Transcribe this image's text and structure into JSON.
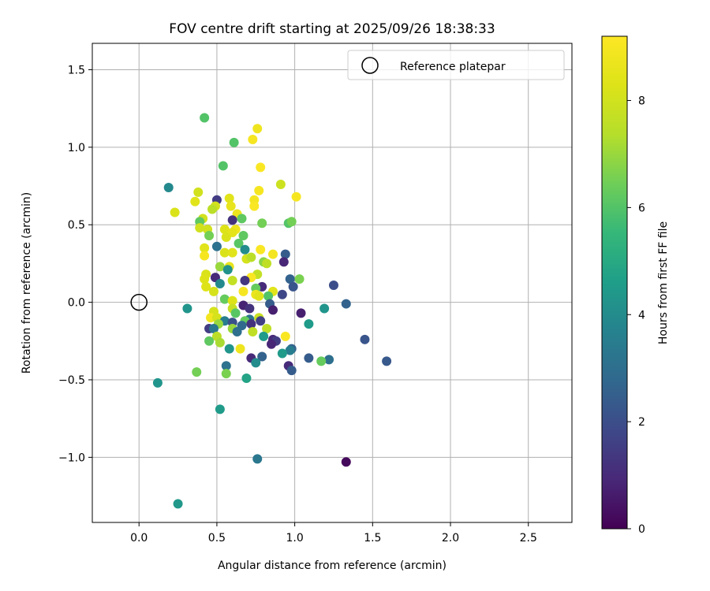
{
  "chart_data": {
    "type": "scatter",
    "title": "FOV centre drift starting at 2025/09/26 18:38:33",
    "xlabel": "Angular distance from reference (arcmin)",
    "ylabel": "Rotation from reference (arcmin)",
    "xlim": [
      -0.3,
      2.78
    ],
    "ylim": [
      -1.42,
      1.67
    ],
    "xticks": [
      0.0,
      0.5,
      1.0,
      1.5,
      2.0,
      2.5
    ],
    "xtick_labels": [
      "0.0",
      "0.5",
      "1.0",
      "1.5",
      "2.0",
      "2.5"
    ],
    "yticks": [
      -1.0,
      -0.5,
      0.0,
      0.5,
      1.0,
      1.5
    ],
    "ytick_labels": [
      "−1.0",
      "−0.5",
      "0.0",
      "0.5",
      "1.0",
      "1.5"
    ],
    "grid": true,
    "legend": {
      "position": "top-right",
      "label": "Reference platepar"
    },
    "reference_point": {
      "x": 0.0,
      "y": 0.0
    },
    "colorbar": {
      "label": "Hours from first FF file",
      "min": 0,
      "max": 9.2,
      "ticks": [
        0,
        2,
        4,
        6,
        8
      ],
      "tick_labels": [
        "0",
        "2",
        "4",
        "6",
        "8"
      ],
      "colormap": "viridis"
    },
    "points": [
      {
        "x": 0.42,
        "y": 1.19,
        "c": 6.0
      },
      {
        "x": 0.76,
        "y": 1.12,
        "c": 8.8
      },
      {
        "x": 0.73,
        "y": 1.05,
        "c": 9.0
      },
      {
        "x": 0.61,
        "y": 1.03,
        "c": 6.0
      },
      {
        "x": 0.54,
        "y": 0.88,
        "c": 6.0
      },
      {
        "x": 0.78,
        "y": 0.87,
        "c": 9.1
      },
      {
        "x": 0.91,
        "y": 0.76,
        "c": 7.9
      },
      {
        "x": 0.19,
        "y": 0.74,
        "c": 3.9
      },
      {
        "x": 0.77,
        "y": 0.72,
        "c": 9.0
      },
      {
        "x": 0.38,
        "y": 0.71,
        "c": 8.0
      },
      {
        "x": 1.01,
        "y": 0.68,
        "c": 9.0
      },
      {
        "x": 0.58,
        "y": 0.67,
        "c": 8.4
      },
      {
        "x": 0.74,
        "y": 0.66,
        "c": 8.9
      },
      {
        "x": 0.5,
        "y": 0.66,
        "c": 1.5
      },
      {
        "x": 0.36,
        "y": 0.65,
        "c": 8.4
      },
      {
        "x": 0.59,
        "y": 0.62,
        "c": 8.6
      },
      {
        "x": 0.74,
        "y": 0.62,
        "c": 9.1
      },
      {
        "x": 0.49,
        "y": 0.62,
        "c": 8.0
      },
      {
        "x": 0.23,
        "y": 0.58,
        "c": 8.2
      },
      {
        "x": 0.47,
        "y": 0.6,
        "c": 7.5
      },
      {
        "x": 0.63,
        "y": 0.57,
        "c": 8.7
      },
      {
        "x": 0.41,
        "y": 0.54,
        "c": 8.0
      },
      {
        "x": 0.6,
        "y": 0.53,
        "c": 1.2
      },
      {
        "x": 0.66,
        "y": 0.54,
        "c": 6.2
      },
      {
        "x": 0.39,
        "y": 0.52,
        "c": 6.2
      },
      {
        "x": 0.79,
        "y": 0.51,
        "c": 6.5
      },
      {
        "x": 0.96,
        "y": 0.51,
        "c": 6.0
      },
      {
        "x": 0.98,
        "y": 0.52,
        "c": 6.5
      },
      {
        "x": 0.39,
        "y": 0.48,
        "c": 8.0
      },
      {
        "x": 0.55,
        "y": 0.47,
        "c": 8.3
      },
      {
        "x": 0.62,
        "y": 0.47,
        "c": 8.8
      },
      {
        "x": 0.44,
        "y": 0.47,
        "c": 8.0
      },
      {
        "x": 0.6,
        "y": 0.45,
        "c": 8.5
      },
      {
        "x": 0.45,
        "y": 0.43,
        "c": 6.5
      },
      {
        "x": 0.56,
        "y": 0.42,
        "c": 8.2
      },
      {
        "x": 0.67,
        "y": 0.43,
        "c": 6.2
      },
      {
        "x": 0.64,
        "y": 0.38,
        "c": 6.1
      },
      {
        "x": 0.5,
        "y": 0.36,
        "c": 3.1
      },
      {
        "x": 0.42,
        "y": 0.35,
        "c": 8.4
      },
      {
        "x": 0.68,
        "y": 0.34,
        "c": 4.0
      },
      {
        "x": 0.78,
        "y": 0.34,
        "c": 9.1
      },
      {
        "x": 0.55,
        "y": 0.32,
        "c": 8.2
      },
      {
        "x": 0.6,
        "y": 0.32,
        "c": 8.4
      },
      {
        "x": 0.86,
        "y": 0.31,
        "c": 8.9
      },
      {
        "x": 0.94,
        "y": 0.31,
        "c": 2.4
      },
      {
        "x": 0.42,
        "y": 0.3,
        "c": 9.0
      },
      {
        "x": 0.69,
        "y": 0.28,
        "c": 8.1
      },
      {
        "x": 0.72,
        "y": 0.29,
        "c": 7.5
      },
      {
        "x": 0.8,
        "y": 0.26,
        "c": 6.8
      },
      {
        "x": 0.82,
        "y": 0.25,
        "c": 7.6
      },
      {
        "x": 0.93,
        "y": 0.26,
        "c": 0.9
      },
      {
        "x": 0.52,
        "y": 0.23,
        "c": 7.0
      },
      {
        "x": 0.58,
        "y": 0.23,
        "c": 8.6
      },
      {
        "x": 0.57,
        "y": 0.21,
        "c": 4.2
      },
      {
        "x": 0.43,
        "y": 0.18,
        "c": 8.2
      },
      {
        "x": 0.76,
        "y": 0.18,
        "c": 7.7
      },
      {
        "x": 0.42,
        "y": 0.15,
        "c": 8.3
      },
      {
        "x": 0.49,
        "y": 0.16,
        "c": 1.0
      },
      {
        "x": 0.72,
        "y": 0.16,
        "c": 9.1
      },
      {
        "x": 0.97,
        "y": 0.15,
        "c": 2.6
      },
      {
        "x": 1.03,
        "y": 0.15,
        "c": 6.6
      },
      {
        "x": 0.6,
        "y": 0.14,
        "c": 7.7
      },
      {
        "x": 0.68,
        "y": 0.14,
        "c": 1.3
      },
      {
        "x": 0.52,
        "y": 0.12,
        "c": 3.9
      },
      {
        "x": 0.43,
        "y": 0.1,
        "c": 8.3
      },
      {
        "x": 0.79,
        "y": 0.1,
        "c": 1.0
      },
      {
        "x": 0.99,
        "y": 0.1,
        "c": 2.2
      },
      {
        "x": 0.75,
        "y": 0.09,
        "c": 6.3
      },
      {
        "x": 0.48,
        "y": 0.07,
        "c": 8.1
      },
      {
        "x": 0.67,
        "y": 0.07,
        "c": 9.0
      },
      {
        "x": 0.86,
        "y": 0.07,
        "c": 8.4
      },
      {
        "x": 0.83,
        "y": 0.04,
        "c": 6.0
      },
      {
        "x": 0.92,
        "y": 0.05,
        "c": 1.8
      },
      {
        "x": 0.75,
        "y": 0.05,
        "c": 8.7
      },
      {
        "x": 0.77,
        "y": 0.04,
        "c": 8.4
      },
      {
        "x": 1.25,
        "y": 0.11,
        "c": 2.0
      },
      {
        "x": 0.55,
        "y": 0.02,
        "c": 6.3
      },
      {
        "x": 0.6,
        "y": 0.01,
        "c": 8.3
      },
      {
        "x": 0.84,
        "y": -0.01,
        "c": 2.4
      },
      {
        "x": 0.67,
        "y": -0.02,
        "c": 0.8
      },
      {
        "x": 0.31,
        "y": -0.04,
        "c": 4.3
      },
      {
        "x": 0.6,
        "y": -0.04,
        "c": 7.8
      },
      {
        "x": 0.71,
        "y": -0.04,
        "c": 1.2
      },
      {
        "x": 1.19,
        "y": -0.04,
        "c": 4.3
      },
      {
        "x": 1.33,
        "y": -0.01,
        "c": 2.6
      },
      {
        "x": 0.48,
        "y": -0.06,
        "c": 8.1
      },
      {
        "x": 0.86,
        "y": -0.05,
        "c": 0.7
      },
      {
        "x": 0.62,
        "y": -0.07,
        "c": 6.1
      },
      {
        "x": 1.04,
        "y": -0.07,
        "c": 0.7
      },
      {
        "x": 0.46,
        "y": -0.1,
        "c": 8.9
      },
      {
        "x": 0.5,
        "y": -0.1,
        "c": 8.1
      },
      {
        "x": 0.77,
        "y": -0.1,
        "c": 7.8
      },
      {
        "x": 0.78,
        "y": -0.12,
        "c": 1.6
      },
      {
        "x": 0.71,
        "y": -0.11,
        "c": 3.2
      },
      {
        "x": 0.68,
        "y": -0.12,
        "c": 6.3
      },
      {
        "x": 0.55,
        "y": -0.12,
        "c": 3.5
      },
      {
        "x": 0.6,
        "y": -0.13,
        "c": 2.1
      },
      {
        "x": 0.51,
        "y": -0.14,
        "c": 7.0
      },
      {
        "x": 1.09,
        "y": -0.14,
        "c": 4.5
      },
      {
        "x": 0.72,
        "y": -0.14,
        "c": 1.2
      },
      {
        "x": 0.66,
        "y": -0.15,
        "c": 2.8
      },
      {
        "x": 0.45,
        "y": -0.17,
        "c": 1.5
      },
      {
        "x": 0.48,
        "y": -0.17,
        "c": 3.3
      },
      {
        "x": 0.6,
        "y": -0.17,
        "c": 7.0
      },
      {
        "x": 0.82,
        "y": -0.17,
        "c": 7.6
      },
      {
        "x": 0.63,
        "y": -0.19,
        "c": 3.0
      },
      {
        "x": 0.73,
        "y": -0.19,
        "c": 7.6
      },
      {
        "x": 0.8,
        "y": -0.22,
        "c": 4.5
      },
      {
        "x": 0.5,
        "y": -0.22,
        "c": 7.5
      },
      {
        "x": 0.94,
        "y": -0.22,
        "c": 9.1
      },
      {
        "x": 0.86,
        "y": -0.24,
        "c": 1.0
      },
      {
        "x": 0.88,
        "y": -0.25,
        "c": 1.5
      },
      {
        "x": 0.45,
        "y": -0.25,
        "c": 6.2
      },
      {
        "x": 0.52,
        "y": -0.26,
        "c": 7.2
      },
      {
        "x": 0.85,
        "y": -0.27,
        "c": 0.9
      },
      {
        "x": 0.58,
        "y": -0.3,
        "c": 4.3
      },
      {
        "x": 0.65,
        "y": -0.3,
        "c": 8.8
      },
      {
        "x": 0.98,
        "y": -0.3,
        "c": 2.6
      },
      {
        "x": 0.97,
        "y": -0.31,
        "c": 3.5
      },
      {
        "x": 0.92,
        "y": -0.33,
        "c": 4.5
      },
      {
        "x": 1.45,
        "y": -0.24,
        "c": 2.2
      },
      {
        "x": 0.72,
        "y": -0.36,
        "c": 1.0
      },
      {
        "x": 0.79,
        "y": -0.35,
        "c": 2.6
      },
      {
        "x": 1.09,
        "y": -0.36,
        "c": 2.4
      },
      {
        "x": 1.22,
        "y": -0.37,
        "c": 3.0
      },
      {
        "x": 1.17,
        "y": -0.38,
        "c": 6.3
      },
      {
        "x": 0.75,
        "y": -0.39,
        "c": 4.0
      },
      {
        "x": 0.96,
        "y": -0.41,
        "c": 1.0
      },
      {
        "x": 0.56,
        "y": -0.41,
        "c": 3.1
      },
      {
        "x": 1.59,
        "y": -0.38,
        "c": 2.3
      },
      {
        "x": 0.98,
        "y": -0.44,
        "c": 2.4
      },
      {
        "x": 0.37,
        "y": -0.45,
        "c": 6.5
      },
      {
        "x": 0.56,
        "y": -0.46,
        "c": 6.6
      },
      {
        "x": 0.69,
        "y": -0.49,
        "c": 4.8
      },
      {
        "x": 0.12,
        "y": -0.52,
        "c": 4.3
      },
      {
        "x": 0.52,
        "y": -0.69,
        "c": 4.5
      },
      {
        "x": 0.76,
        "y": -1.01,
        "c": 3.3
      },
      {
        "x": 1.33,
        "y": -1.03,
        "c": 0.2
      },
      {
        "x": 0.25,
        "y": -1.3,
        "c": 4.4
      }
    ]
  }
}
